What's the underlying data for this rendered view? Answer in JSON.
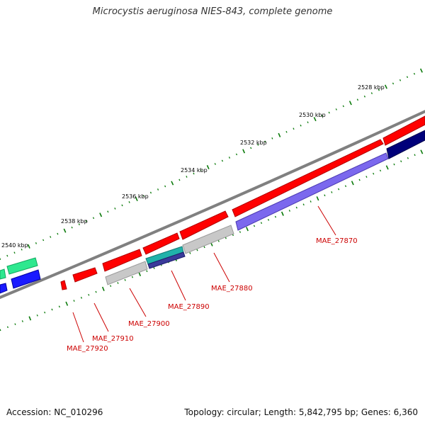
{
  "title": "Microcystis aeruginosa NIES-843, complete genome",
  "accession": "Accession: NC_010296",
  "summary": "Topology: circular; Length: 5,842,795 bp; Genes: 6,360",
  "colors": {
    "backbone": "#808080",
    "cds_forward": "#ff0000",
    "cds_reverse_gray": "#c8c8c8",
    "cds_purple": "#7b68ee",
    "cds_teal": "#20b2aa",
    "cds_navy": "#00007a",
    "cds_green": "#2ee88f",
    "cds_blue": "#1a1aff",
    "tick": "#0a7a0a",
    "gene_label": "#cc0000",
    "scale_label": "#000000"
  },
  "scale_labels": [
    "2528 kbp",
    "2530 kbp",
    "2532 kbp",
    "2534 kbp",
    "2536 kbp",
    "2538 kbp",
    "2540 kbp"
  ],
  "gene_labels": [
    "MAE_27870",
    "MAE_27880",
    "MAE_27890",
    "MAE_27900",
    "MAE_27910",
    "MAE_27920"
  ]
}
